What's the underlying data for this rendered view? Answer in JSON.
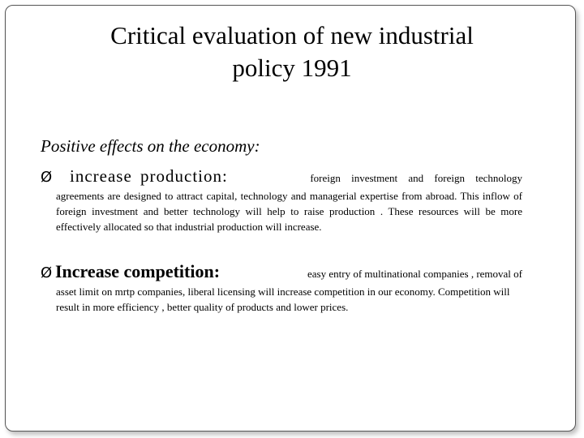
{
  "slide": {
    "title_lines": [
      "Critical evaluation of new industrial",
      "policy 1991"
    ],
    "subhead_glyph": "",
    "subhead": "Positive effects on the economy:",
    "arrow_glyph": "Ø",
    "bullets": [
      {
        "heading": "increase production:",
        "inline": "foreign investment and foreign technology",
        "body": "agreements are designed to attract capital, technology and managerial expertise from abroad. This inflow of foreign investment and better technology will help to raise production . These resources will be more effectively allocated so that industrial production will increase."
      },
      {
        "heading": "Increase competition:",
        "inline": "easy entry of multinational companies , removal of",
        "body": "asset limit on mrtp companies, liberal licensing will increase competition in our economy. Competition will result in more efficiency , better quality of products and lower prices."
      }
    ]
  }
}
